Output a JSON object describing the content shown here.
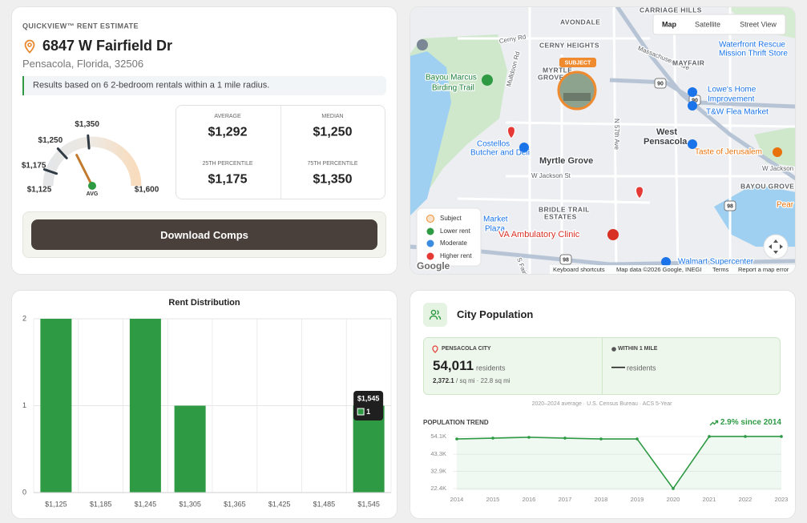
{
  "quickview": {
    "eyebrow": "QUICKVIEW™ RENT ESTIMATE",
    "address": "6847 W Fairfield Dr",
    "city": "Pensacola, Florida, 32506",
    "note": "Results based on 6 2-bedroom rentals within a 1 mile radius.",
    "gauge": {
      "min": {
        "value": 1125,
        "label": "$1,125"
      },
      "max": {
        "value": 1600,
        "label": "$1,600"
      },
      "ticks": [
        {
          "value": 1175,
          "label": "$1,175"
        },
        {
          "value": 1250,
          "label": "$1,250"
        },
        {
          "value": 1350,
          "label": "$1,350"
        }
      ],
      "needle": {
        "value": 1292,
        "label": "AVG"
      }
    },
    "stats": [
      {
        "label": "AVERAGE",
        "value": "$1,292"
      },
      {
        "label": "MEDIAN",
        "value": "$1,250"
      },
      {
        "label": "25TH PERCENTILE",
        "value": "$1,175"
      },
      {
        "label": "75TH PERCENTILE",
        "value": "$1,350"
      }
    ],
    "button": "Download Comps"
  },
  "map": {
    "buttons": [
      "Map",
      "Satellite",
      "Street View"
    ],
    "places": [
      "CARRIAGE HILLS",
      "AVONDALE",
      "Cerny Rd",
      "CERNY HEIGHTS",
      "Massachusetts Ave",
      "MAYFAIR",
      "Waterfront Rescue",
      "Mission Thrift Store",
      "Bayou Marcus",
      "Birding Trail",
      "MYRTLE",
      "GROVE",
      "Mulldoon Rd",
      "Lowe's Home",
      "Improvement",
      "T&W Flea Market",
      "West",
      "Pensacola",
      "N 57th Ave",
      "Costellos",
      "Butcher and Deli",
      "Myrtle Grove",
      "Taste of Jerusalem",
      "W Jackson St",
      "W Jackson S",
      "BAYOU GROVE",
      "BRIDLE TRAIL",
      "ESTATES",
      "Market",
      "Plaza",
      "VA Ambulatory Clinic",
      "Pear",
      "Walmart Supercenter",
      "S Fairfield"
    ],
    "shields": [
      "90",
      "90",
      "98",
      "98"
    ],
    "subject_badge": "SUBJECT",
    "legend": [
      "Subject",
      "Lower rent",
      "Moderate",
      "Higher rent"
    ],
    "logo": "Google",
    "footer": [
      "Keyboard shortcuts",
      "Map data ©2026 Google, INEGI",
      "Terms",
      "Report a map error"
    ]
  },
  "rent_distribution": {
    "type": "bar",
    "title": "Rent Distribution",
    "categories": [
      "$1,125",
      "$1,185",
      "$1,245",
      "$1,305",
      "$1,365",
      "$1,425",
      "$1,485",
      "$1,545"
    ],
    "values": [
      2,
      0,
      2,
      1,
      0,
      0,
      0,
      1
    ],
    "color": "#2e9b44",
    "ylim": [
      0,
      2
    ],
    "yticks": [
      0,
      1,
      2
    ],
    "grid": true
  },
  "population": {
    "title": "City Population",
    "city": {
      "label": "PENSACOLA CITY",
      "value": "54,011",
      "unit": "residents",
      "density": "2,372.1",
      "detail": "/ sq mi · 22.8 sq mi"
    },
    "radius": {
      "label": "WITHIN 1 MILE",
      "value": "—",
      "unit": "residents"
    },
    "source": "2020–2024 average · U.S. Census Bureau · ACS 5-Year",
    "trend": {
      "type": "line",
      "title": "POPULATION TREND",
      "change": "2.9% since 2014",
      "x": [
        2014,
        2015,
        2016,
        2017,
        2018,
        2019,
        2020,
        2021,
        2022,
        2023
      ],
      "values": [
        52600,
        53100,
        53600,
        53100,
        52600,
        52600,
        22400,
        54100,
        54100,
        54100
      ],
      "color": "#2e9b44",
      "xlim": [
        2014,
        2023
      ],
      "ylim": [
        21400,
        57500
      ],
      "xticks": [
        2014,
        2015,
        2016,
        2017,
        2018,
        2019,
        2020,
        2021,
        2022,
        2023
      ],
      "yticks": [
        {
          "value": 22400,
          "label": "22.4K"
        },
        {
          "value": 32900,
          "label": "32.9K"
        },
        {
          "value": 43300,
          "label": "43.3K"
        },
        {
          "value": 54100,
          "label": "54.1K"
        }
      ],
      "grid": true
    }
  }
}
